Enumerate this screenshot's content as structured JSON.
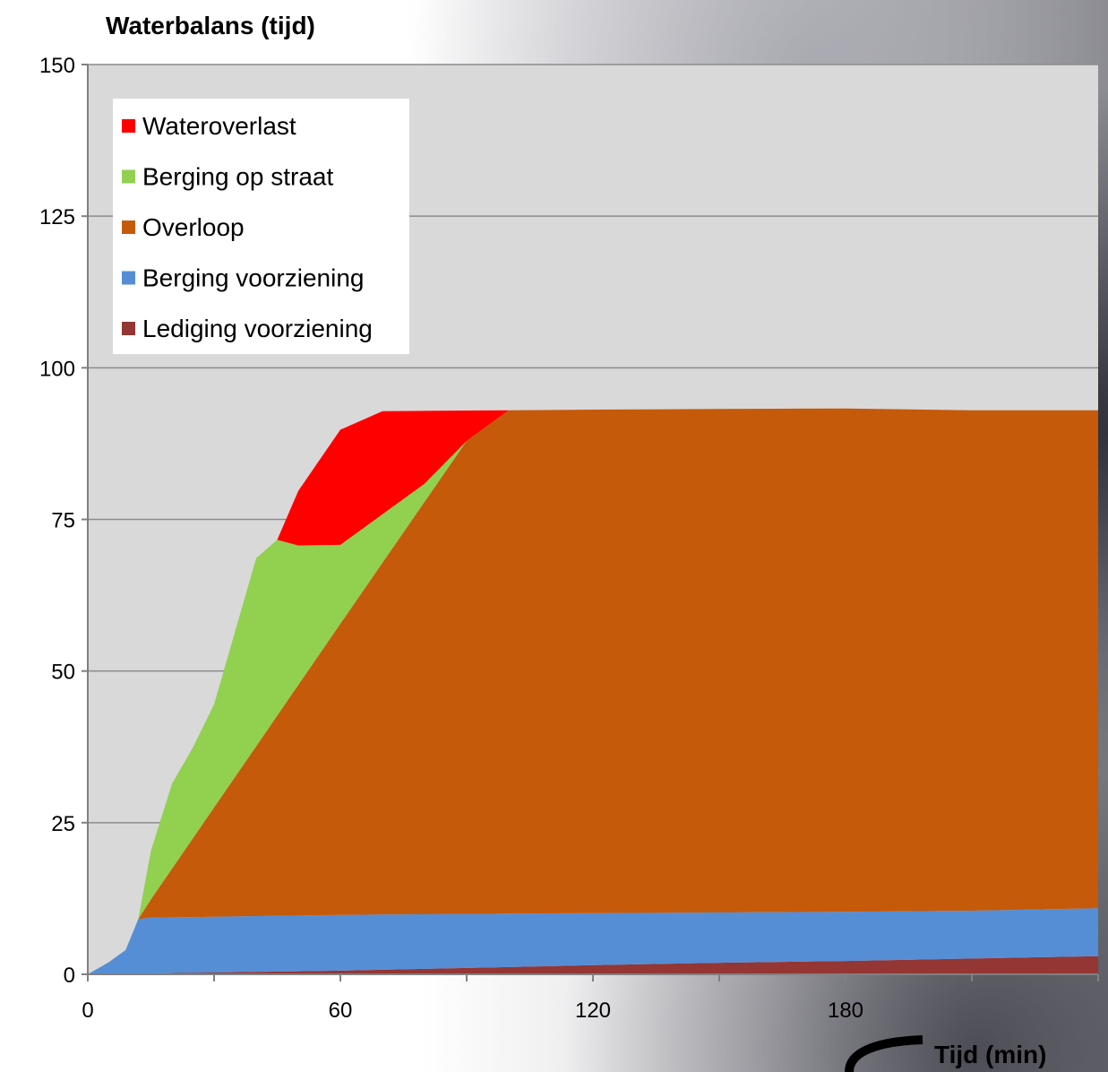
{
  "chart_data": {
    "type": "area",
    "title": "Waterbalans (tijd)",
    "xlabel": "Tijd (min)",
    "ylabel": "",
    "xlim": [
      0,
      240
    ],
    "ylim": [
      0,
      150
    ],
    "x_ticks": [
      0,
      60,
      120,
      180
    ],
    "y_ticks": [
      0,
      25,
      50,
      75,
      100,
      125,
      150
    ],
    "grid": true,
    "legend_position": "top-left",
    "x": [
      0,
      5,
      9,
      12,
      15,
      20,
      25,
      30,
      35,
      40,
      45,
      50,
      55,
      60,
      70,
      80,
      90,
      100,
      120,
      150,
      165,
      180,
      210,
      240
    ],
    "series": [
      {
        "name": "Lediging voorziening",
        "color": "#943634",
        "values": [
          0,
          0,
          0,
          0.1,
          0.15,
          0.2,
          0.25,
          0.3,
          0.35,
          0.4,
          0.45,
          0.5,
          0.55,
          0.6,
          0.75,
          0.9,
          1.05,
          1.2,
          1.5,
          1.9,
          2.05,
          2.2,
          2.6,
          3.0
        ]
      },
      {
        "name": "Berging voorziening",
        "color": "#558ED5",
        "values": [
          0,
          2,
          4,
          9,
          9.2,
          9.2,
          9.2,
          9.2,
          9.2,
          9.2,
          9.2,
          9.2,
          9.2,
          9.2,
          9.1,
          9.0,
          8.9,
          8.8,
          8.6,
          8.3,
          8.2,
          8.1,
          7.9,
          7.9
        ]
      },
      {
        "name": "Overloop",
        "color": "#C55A0A",
        "values": [
          0,
          0,
          0,
          0,
          3,
          8,
          13,
          18,
          23,
          28,
          33,
          38,
          43,
          48,
          58,
          68,
          78,
          83,
          83,
          83,
          83,
          83,
          82.5,
          82.1
        ]
      },
      {
        "name": "Berging op straat",
        "color": "#92D050",
        "values": [
          0,
          0,
          0,
          0,
          8,
          14,
          15,
          17,
          24,
          31,
          29,
          23,
          18,
          13,
          8,
          3,
          0,
          0,
          0,
          0,
          0,
          0,
          0,
          0
        ]
      },
      {
        "name": "Wateroverlast",
        "color": "#FF0000",
        "values": [
          0,
          0,
          0,
          0,
          0,
          0,
          0,
          0,
          0,
          0,
          0,
          9,
          14,
          19,
          17,
          12,
          5,
          0,
          0,
          0,
          0,
          0,
          0,
          0
        ]
      }
    ],
    "legend_order": [
      "Wateroverlast",
      "Berging op straat",
      "Overloop",
      "Berging voorziening",
      "Lediging voorziening"
    ]
  }
}
